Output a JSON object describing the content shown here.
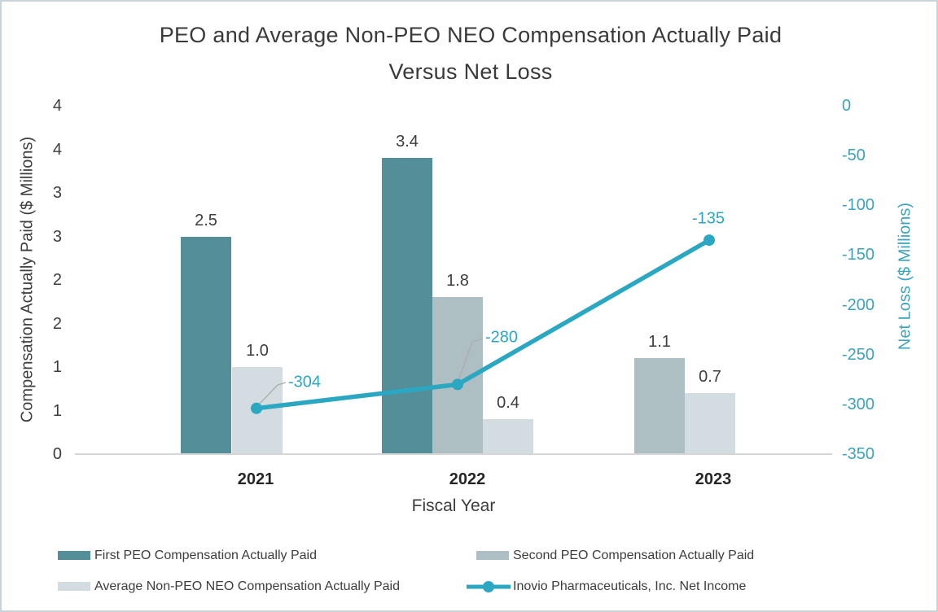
{
  "title": {
    "line1": "PEO and Average Non-PEO NEO Compensation Actually Paid",
    "line2": "Versus Net Loss"
  },
  "chart_data": {
    "type": "combo-bar-line",
    "title": "PEO and Average Non-PEO NEO Compensation Actually Paid Versus Net Loss",
    "categories": [
      "2021",
      "2022",
      "2023"
    ],
    "xlabel": "Fiscal Year",
    "bar_series": [
      {
        "name": "First PEO Compensation Actually Paid",
        "color": "#548e99",
        "values": [
          2.5,
          3.4,
          null
        ]
      },
      {
        "name": "Second PEO Compensation Actually Paid",
        "color": "#aebfc3",
        "values": [
          null,
          1.8,
          1.1
        ]
      },
      {
        "name": "Average Non-PEO NEO Compensation Actually Paid",
        "color": "#d3dde1",
        "values": [
          1.0,
          0.4,
          0.7
        ]
      }
    ],
    "line_series": {
      "name": "Inovio Pharmaceuticals, Inc. Net Income",
      "color": "#2ba7c2",
      "values": [
        -304,
        -280,
        -135
      ],
      "point_labels": [
        "-304",
        "-280",
        "-135"
      ]
    },
    "left_axis": {
      "title": "Compensation Actually Paid ($ Millions)",
      "tick_labels": [
        "4",
        "4",
        "3",
        "3",
        "2",
        "2",
        "1",
        "1",
        "0"
      ],
      "min": 0,
      "max": 4
    },
    "right_axis": {
      "title": "Net Loss ($ Millions)",
      "tick_labels": [
        "0",
        "-50",
        "-100",
        "-150",
        "-200",
        "-250",
        "-300",
        "-350"
      ],
      "min": -350,
      "max": 0,
      "text_color": "#3ba3bc"
    },
    "legend_position": "bottom"
  },
  "colors": {
    "first_peo": "#548e99",
    "second_peo": "#aebfc3",
    "avg_non_peo": "#d3dde1",
    "net_income_line": "#2ba7c2",
    "leader_line": "#acacac",
    "axis_line": "#d6d6d6",
    "border": "#c9d4da"
  }
}
